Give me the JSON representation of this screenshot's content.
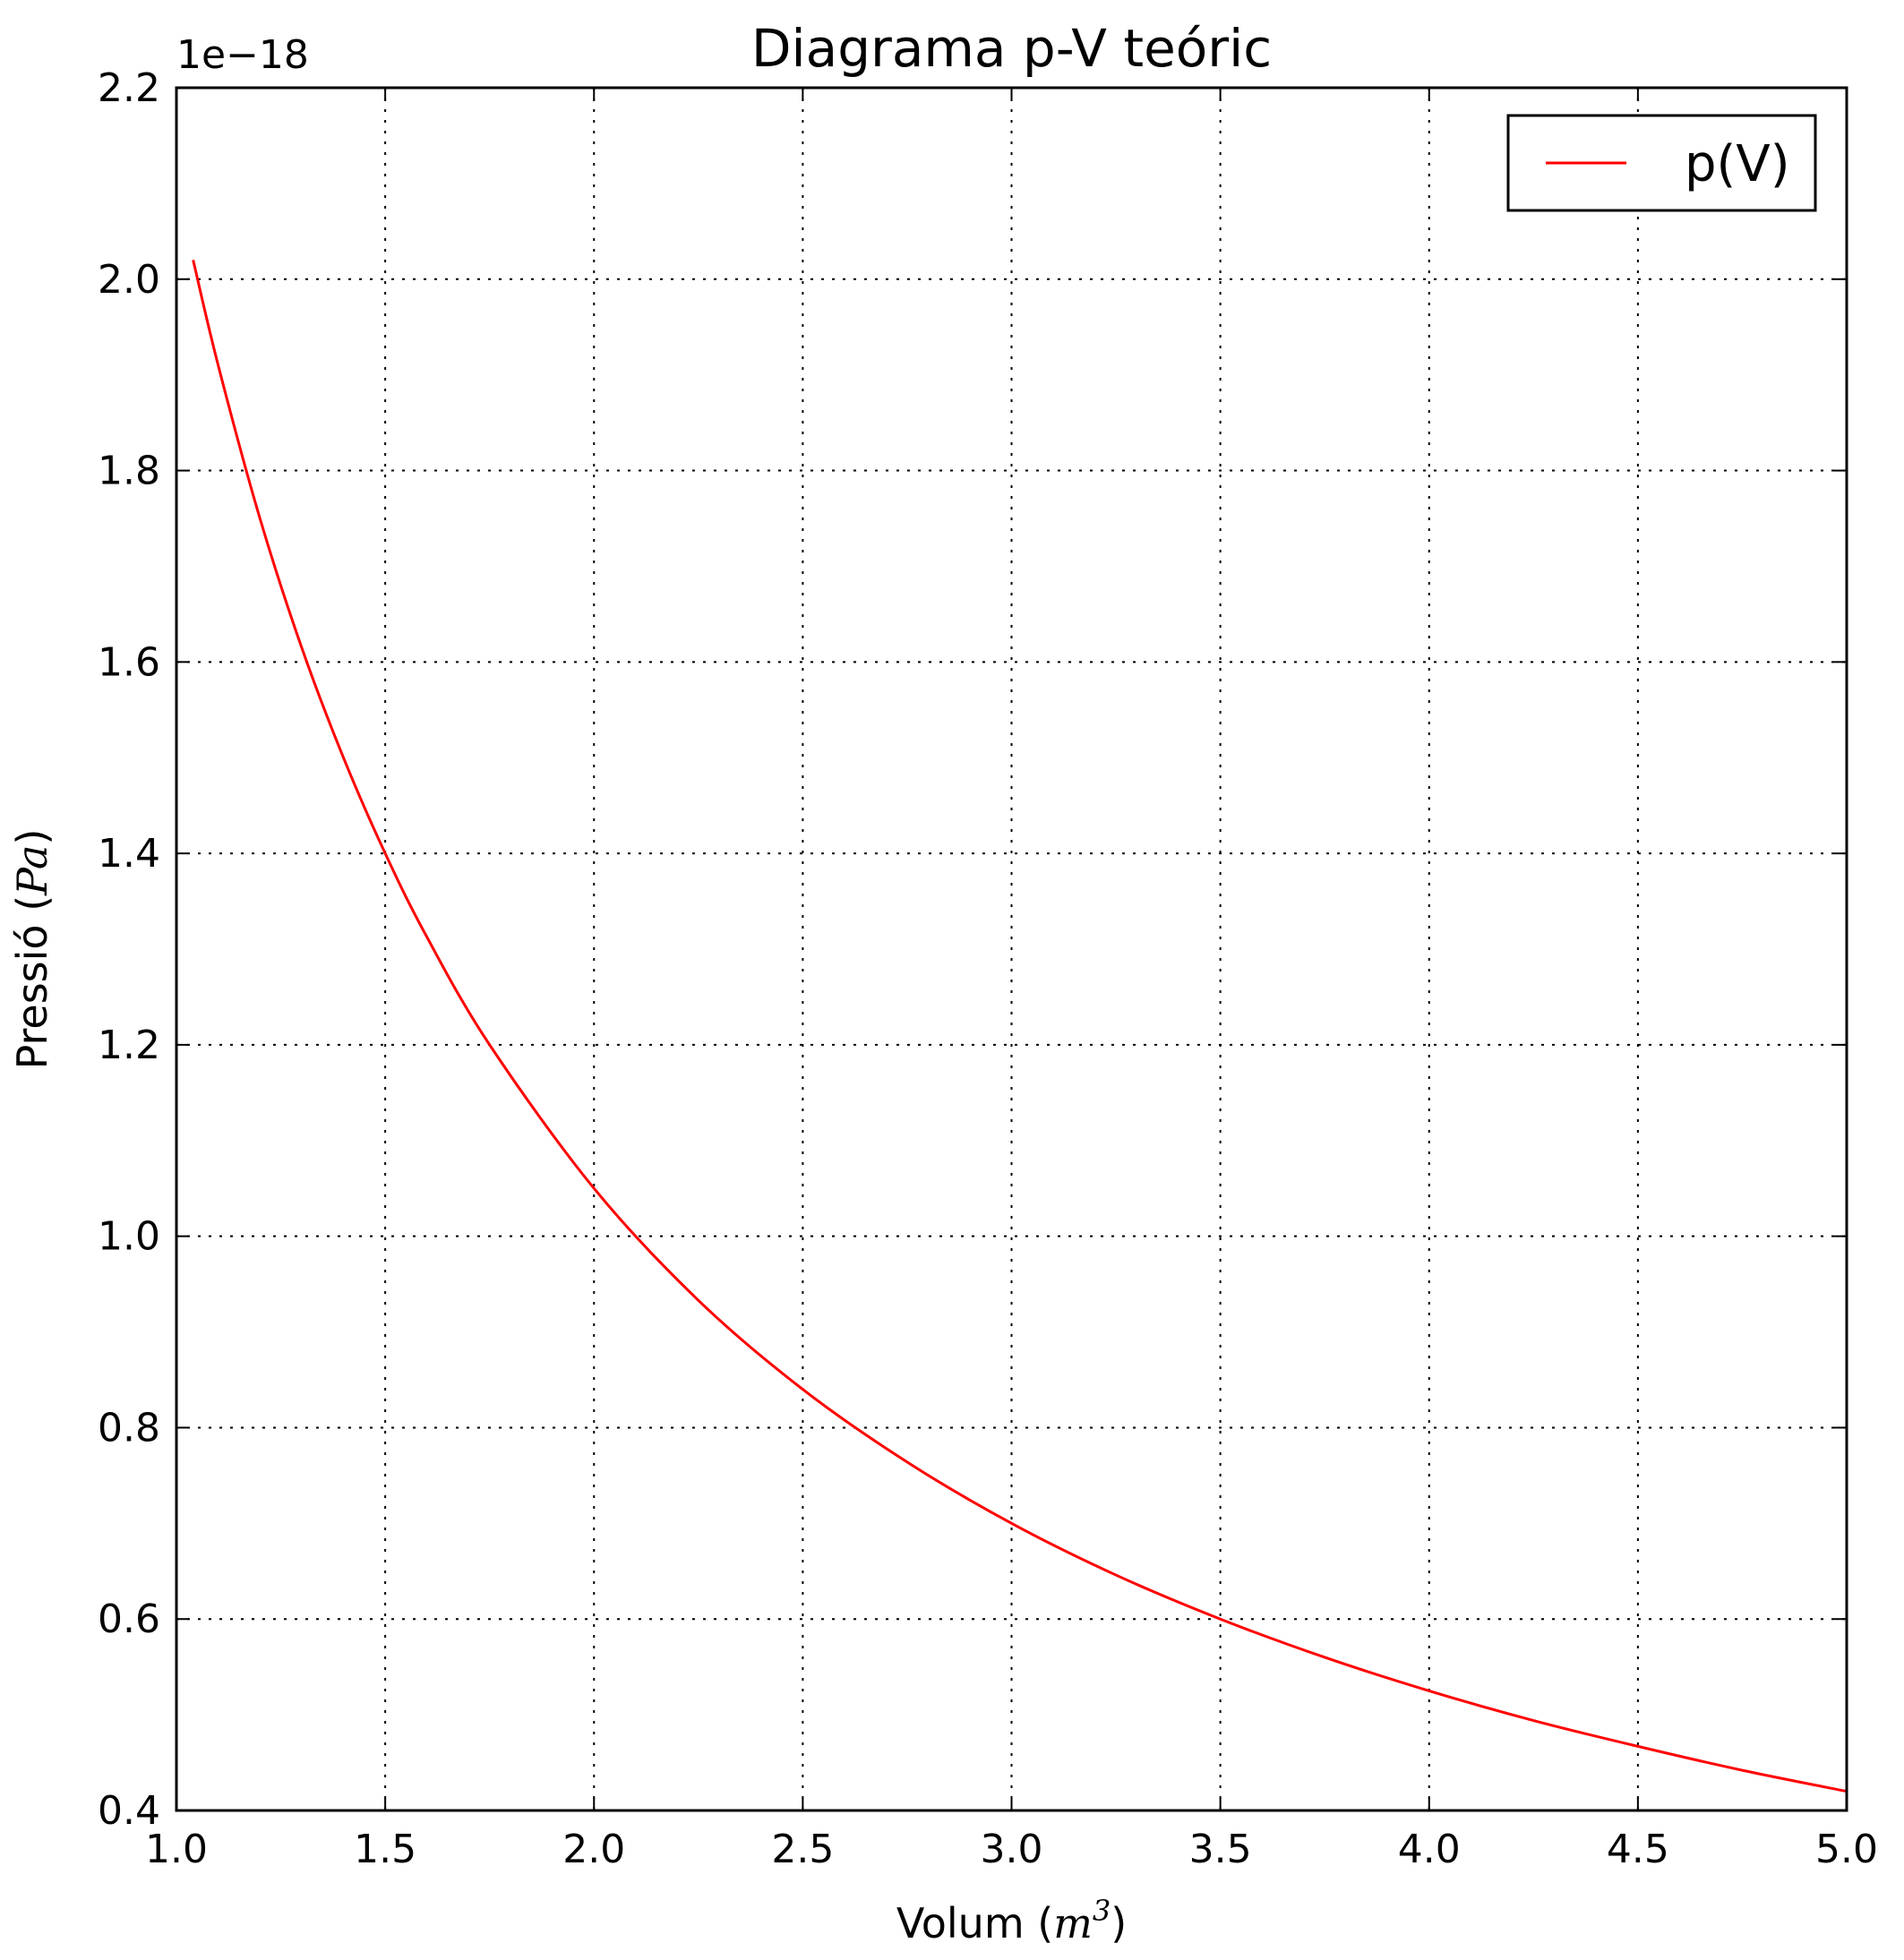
{
  "chart_data": {
    "type": "line",
    "title": "Diagrama p-V teóric",
    "xlabel": "Volum",
    "xlabel_unit": "m",
    "xlabel_unit_exponent": "3",
    "ylabel": "Pressió",
    "ylabel_unit": "Pa",
    "y_offset_text": "1e−18",
    "xlim": [
      1.0,
      5.0
    ],
    "ylim": [
      0.4,
      2.2
    ],
    "xticks": [
      "1.0",
      "1.5",
      "2.0",
      "2.5",
      "3.0",
      "3.5",
      "4.0",
      "4.5",
      "5.0"
    ],
    "yticks": [
      "0.4",
      "0.6",
      "0.8",
      "1.0",
      "1.2",
      "1.4",
      "1.6",
      "1.8",
      "2.0",
      "2.2"
    ],
    "grid": true,
    "legend_position": "top-right",
    "series": [
      {
        "name": "p(V)",
        "color": "#ff0000",
        "x": [
          1.04,
          1.1,
          1.2,
          1.3,
          1.4,
          1.5,
          1.6,
          1.75,
          2.0,
          2.25,
          2.5,
          2.75,
          3.0,
          3.25,
          3.5,
          3.75,
          4.0,
          4.25,
          4.5,
          4.75,
          5.0
        ],
        "y": [
          2.02,
          1.91,
          1.75,
          1.615,
          1.5,
          1.4,
          1.3125,
          1.2,
          1.05,
          0.933,
          0.84,
          0.764,
          0.7,
          0.646,
          0.6,
          0.56,
          0.525,
          0.494,
          0.467,
          0.442,
          0.42
        ]
      }
    ]
  }
}
